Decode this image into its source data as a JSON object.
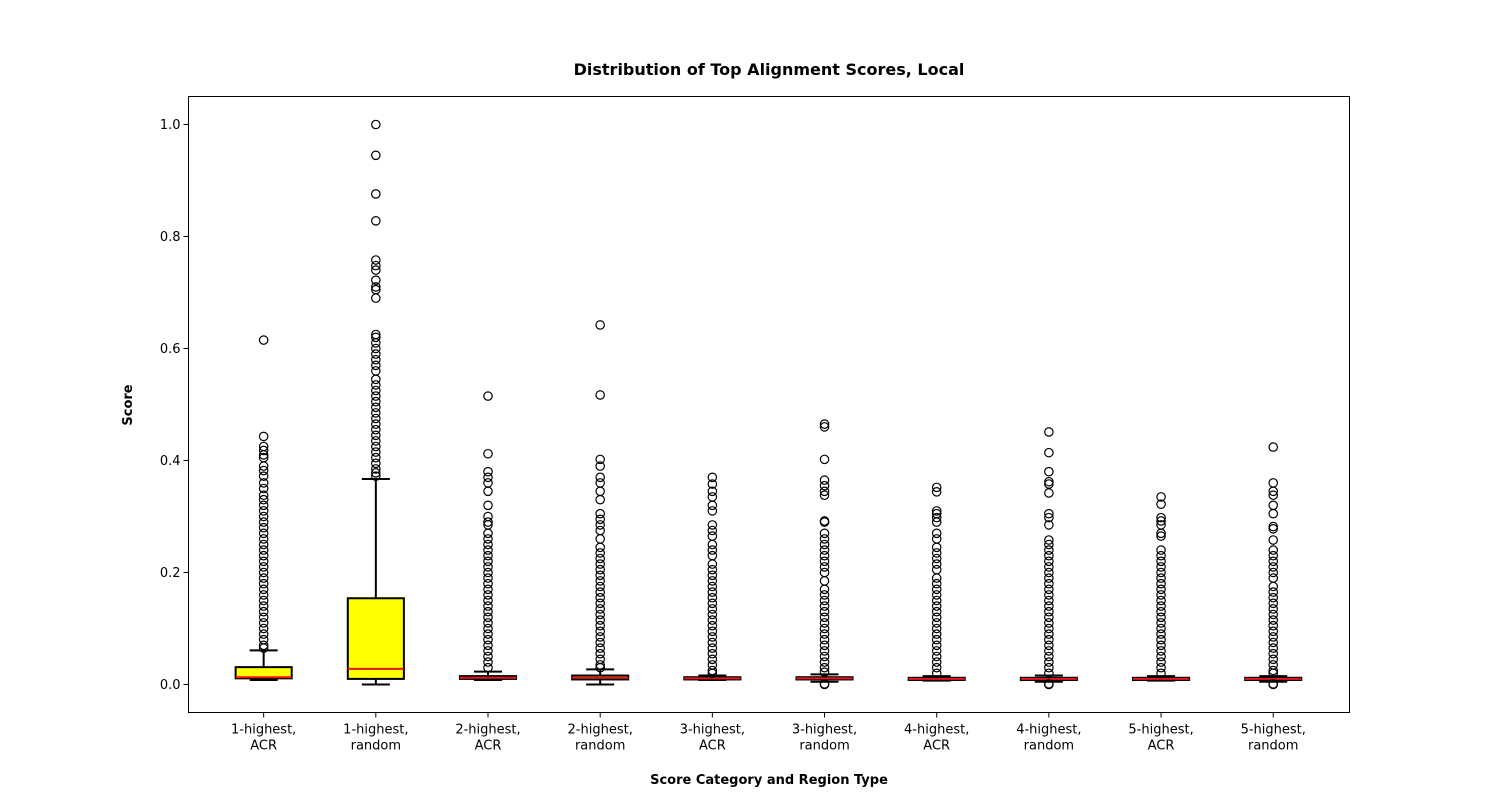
{
  "chart_data": {
    "type": "box",
    "title": "Distribution of Top Alignment Scores, Local",
    "xlabel": "Score Category and Region Type",
    "ylabel": "Score",
    "ylim": [
      -0.05,
      1.05
    ],
    "yticks": [
      0.0,
      0.2,
      0.4,
      0.6,
      0.8,
      1.0
    ],
    "ytick_labels": [
      "0.0",
      "0.2",
      "0.4",
      "0.6",
      "0.8",
      "1.0"
    ],
    "grid": false,
    "colors": {
      "box_fill": "#ffff00",
      "median": "#e8141b",
      "outline": "#000000"
    },
    "categories": [
      {
        "label_line1": "1-highest,",
        "label_line2": "ACR",
        "whisker_low": 0.008,
        "q1": 0.011,
        "median": 0.013,
        "q3": 0.031,
        "whisker_high": 0.061,
        "outliers_top": [
          0.615,
          0.443,
          0.425,
          0.418,
          0.41,
          0.405,
          0.39,
          0.382,
          0.372,
          0.36,
          0.35,
          0.338,
          0.33,
          0.32,
          0.31,
          0.3,
          0.29,
          0.28,
          0.27,
          0.26,
          0.25,
          0.24,
          0.23,
          0.22,
          0.21,
          0.2,
          0.19,
          0.18,
          0.17,
          0.16,
          0.15,
          0.14,
          0.13,
          0.12,
          0.11,
          0.1,
          0.09,
          0.08,
          0.07,
          0.065
        ]
      },
      {
        "label_line1": "1-highest,",
        "label_line2": "random",
        "whisker_low": 0.0,
        "q1": 0.01,
        "median": 0.028,
        "q3": 0.154,
        "whisker_high": 0.367,
        "outliers_top": [
          1.0,
          0.945,
          0.876,
          0.828,
          0.758,
          0.748,
          0.74,
          0.722,
          0.71,
          0.705,
          0.69,
          0.625,
          0.62,
          0.61,
          0.6,
          0.59,
          0.58,
          0.57,
          0.56,
          0.545,
          0.535,
          0.525,
          0.515,
          0.505,
          0.495,
          0.485,
          0.475,
          0.465,
          0.455,
          0.445,
          0.435,
          0.425,
          0.415,
          0.405,
          0.395,
          0.385,
          0.378,
          0.372
        ]
      },
      {
        "label_line1": "2-highest,",
        "label_line2": "ACR",
        "whisker_low": 0.008,
        "q1": 0.01,
        "median": 0.012,
        "q3": 0.015,
        "whisker_high": 0.023,
        "outliers_top": [
          0.515,
          0.412,
          0.38,
          0.37,
          0.36,
          0.345,
          0.32,
          0.3,
          0.29,
          0.285,
          0.27,
          0.26,
          0.25,
          0.24,
          0.23,
          0.22,
          0.21,
          0.2,
          0.19,
          0.18,
          0.17,
          0.16,
          0.15,
          0.14,
          0.13,
          0.12,
          0.11,
          0.1,
          0.09,
          0.08,
          0.07,
          0.06,
          0.05,
          0.04,
          0.03
        ]
      },
      {
        "label_line1": "2-highest,",
        "label_line2": "random",
        "whisker_low": 0.0,
        "q1": 0.009,
        "median": 0.012,
        "q3": 0.016,
        "whisker_high": 0.027,
        "outliers_top": [
          0.642,
          0.517,
          0.402,
          0.39,
          0.37,
          0.36,
          0.345,
          0.33,
          0.305,
          0.295,
          0.285,
          0.275,
          0.26,
          0.245,
          0.235,
          0.225,
          0.215,
          0.205,
          0.195,
          0.185,
          0.175,
          0.165,
          0.155,
          0.145,
          0.135,
          0.125,
          0.115,
          0.105,
          0.095,
          0.085,
          0.075,
          0.065,
          0.055,
          0.045,
          0.035,
          0.03
        ]
      },
      {
        "label_line1": "3-highest,",
        "label_line2": "ACR",
        "whisker_low": 0.008,
        "q1": 0.009,
        "median": 0.011,
        "q3": 0.013,
        "whisker_high": 0.016,
        "outliers_top": [
          0.37,
          0.358,
          0.345,
          0.335,
          0.32,
          0.31,
          0.285,
          0.275,
          0.265,
          0.25,
          0.24,
          0.23,
          0.215,
          0.205,
          0.195,
          0.185,
          0.175,
          0.165,
          0.155,
          0.145,
          0.135,
          0.125,
          0.115,
          0.105,
          0.095,
          0.085,
          0.075,
          0.065,
          0.055,
          0.045,
          0.035,
          0.025,
          0.02
        ]
      },
      {
        "label_line1": "3-highest,",
        "label_line2": "random",
        "whisker_low": 0.005,
        "q1": 0.009,
        "median": 0.011,
        "q3": 0.013,
        "whisker_high": 0.018,
        "outliers_top": [
          0.465,
          0.46,
          0.402,
          0.365,
          0.355,
          0.345,
          0.338,
          0.292,
          0.29,
          0.27,
          0.26,
          0.25,
          0.24,
          0.23,
          0.22,
          0.21,
          0.2,
          0.185,
          0.17,
          0.16,
          0.15,
          0.14,
          0.13,
          0.12,
          0.11,
          0.1,
          0.09,
          0.08,
          0.07,
          0.06,
          0.05,
          0.04,
          0.03,
          0.022
        ],
        "outliers_bottom": [
          0.001,
          0.0
        ]
      },
      {
        "label_line1": "4-highest,",
        "label_line2": "ACR",
        "whisker_low": 0.007,
        "q1": 0.008,
        "median": 0.01,
        "q3": 0.012,
        "whisker_high": 0.015,
        "outliers_top": [
          0.352,
          0.344,
          0.31,
          0.305,
          0.298,
          0.29,
          0.27,
          0.26,
          0.245,
          0.235,
          0.225,
          0.215,
          0.205,
          0.19,
          0.18,
          0.17,
          0.16,
          0.15,
          0.14,
          0.13,
          0.12,
          0.11,
          0.1,
          0.09,
          0.08,
          0.07,
          0.06,
          0.05,
          0.04,
          0.03,
          0.02
        ]
      },
      {
        "label_line1": "4-highest,",
        "label_line2": "random",
        "whisker_low": 0.005,
        "q1": 0.008,
        "median": 0.01,
        "q3": 0.012,
        "whisker_high": 0.016,
        "outliers_top": [
          0.451,
          0.414,
          0.38,
          0.362,
          0.358,
          0.342,
          0.305,
          0.298,
          0.285,
          0.258,
          0.25,
          0.24,
          0.23,
          0.22,
          0.21,
          0.2,
          0.19,
          0.18,
          0.17,
          0.16,
          0.15,
          0.14,
          0.13,
          0.12,
          0.11,
          0.1,
          0.09,
          0.08,
          0.07,
          0.06,
          0.05,
          0.04,
          0.03,
          0.02
        ],
        "outliers_bottom": [
          0.001,
          0.0
        ]
      },
      {
        "label_line1": "5-highest,",
        "label_line2": "ACR",
        "whisker_low": 0.007,
        "q1": 0.008,
        "median": 0.01,
        "q3": 0.012,
        "whisker_high": 0.015,
        "outliers_top": [
          0.335,
          0.322,
          0.298,
          0.292,
          0.285,
          0.27,
          0.265,
          0.24,
          0.23,
          0.22,
          0.21,
          0.2,
          0.19,
          0.18,
          0.17,
          0.16,
          0.15,
          0.14,
          0.13,
          0.12,
          0.11,
          0.1,
          0.09,
          0.08,
          0.07,
          0.06,
          0.05,
          0.04,
          0.03,
          0.02
        ]
      },
      {
        "label_line1": "5-highest,",
        "label_line2": "random",
        "whisker_low": 0.005,
        "q1": 0.008,
        "median": 0.01,
        "q3": 0.012,
        "whisker_high": 0.015,
        "outliers_top": [
          0.424,
          0.36,
          0.345,
          0.338,
          0.32,
          0.305,
          0.282,
          0.278,
          0.258,
          0.24,
          0.23,
          0.22,
          0.21,
          0.2,
          0.19,
          0.175,
          0.165,
          0.155,
          0.145,
          0.135,
          0.125,
          0.115,
          0.105,
          0.095,
          0.085,
          0.075,
          0.065,
          0.055,
          0.045,
          0.035,
          0.025,
          0.02
        ],
        "outliers_bottom": [
          0.001,
          0.0
        ]
      }
    ]
  }
}
